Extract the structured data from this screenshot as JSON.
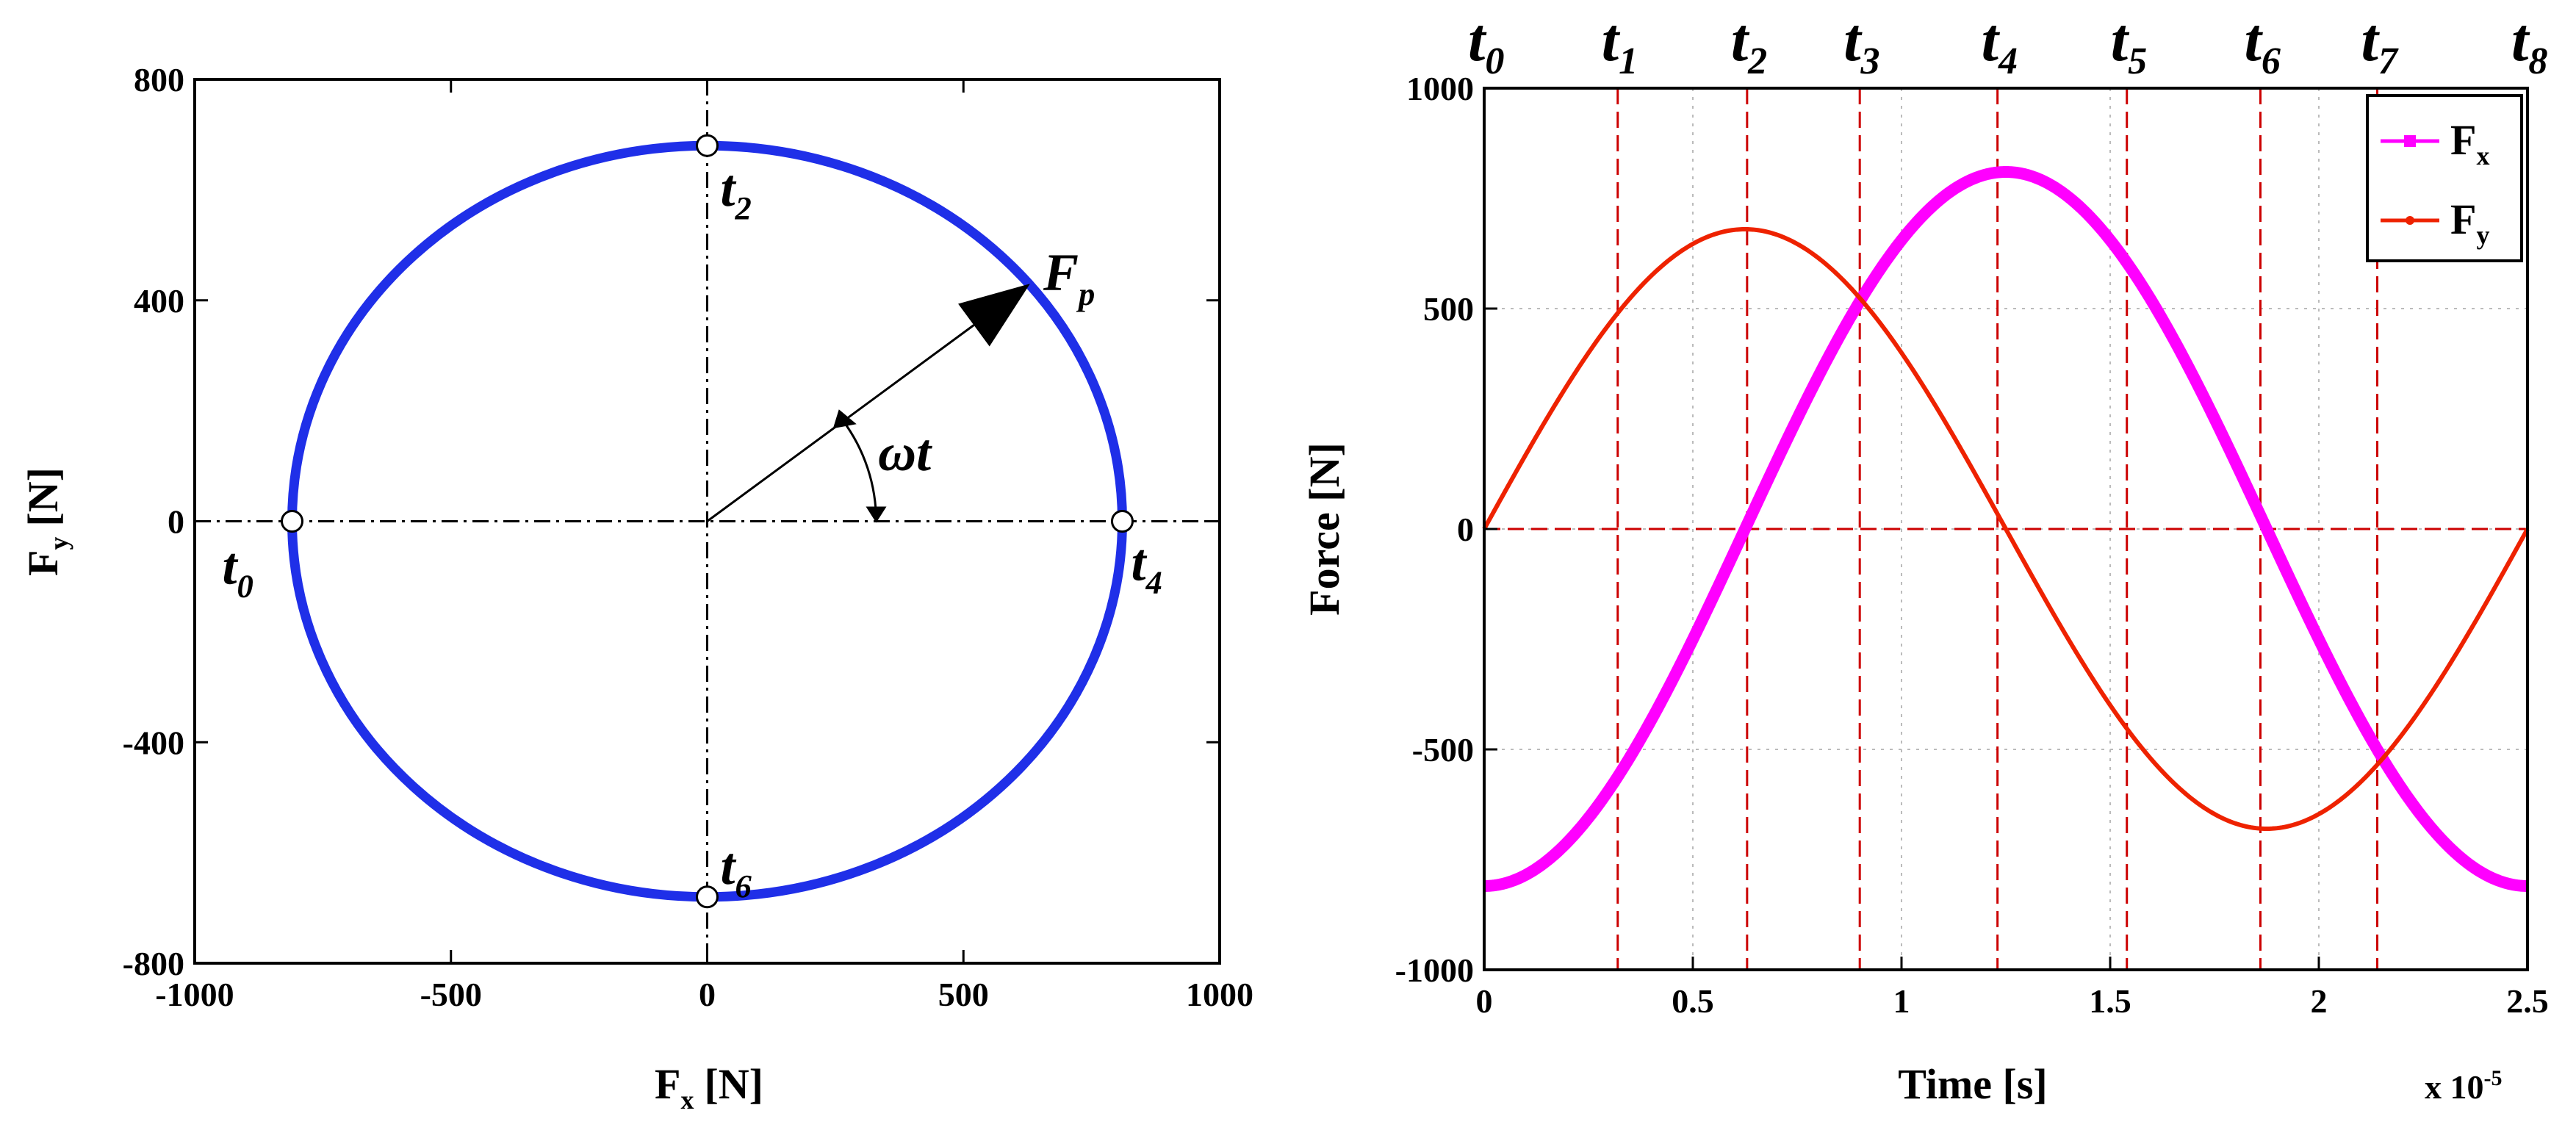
{
  "colors": {
    "ellipse": "#1f2fe8",
    "fx": "#ff00ff",
    "fy": "#ee2200",
    "time_grid": "#cc0000",
    "axis": "#000000"
  },
  "chart_data": [
    {
      "type": "line",
      "panel": "left",
      "description_title": "",
      "xlabel": "F",
      "xlabel_sub": "x",
      "xlabel_unit": "[N]",
      "ylabel": "F",
      "ylabel_sub": "y",
      "ylabel_unit": "[N]",
      "xlim": [
        -1000,
        1000
      ],
      "ylim": [
        -800,
        800
      ],
      "xticks": [
        -1000,
        -500,
        0,
        500,
        1000
      ],
      "xtick_labels": [
        "-1000",
        "-500",
        "0",
        "500",
        "1000"
      ],
      "yticks": [
        -800,
        -400,
        0,
        400,
        800
      ],
      "ytick_labels": [
        "-800",
        "-400",
        "0",
        "400",
        "800"
      ],
      "series": [
        {
          "name": "ellipse",
          "semi_axis_x": 810,
          "semi_axis_y": 680
        }
      ],
      "markers": [
        {
          "label": "t",
          "sub": "0",
          "x": -810,
          "y": 0
        },
        {
          "label": "t",
          "sub": "2",
          "x": 0,
          "y": 680
        },
        {
          "label": "t",
          "sub": "4",
          "x": 810,
          "y": 0
        },
        {
          "label": "t",
          "sub": "6",
          "x": 0,
          "y": -680
        }
      ],
      "annotations": {
        "force_label": "F",
        "force_sub": "p",
        "force_tip": [
          630,
          430
        ],
        "angle_label": "ωt"
      }
    },
    {
      "type": "line",
      "panel": "right",
      "xlabel": "Time [s]",
      "ylabel": "Force [N]",
      "x_scale_note": "x 10",
      "x_scale_exp": "-5",
      "xlim": [
        0,
        2.5
      ],
      "ylim": [
        -1000,
        1000
      ],
      "xticks": [
        0,
        0.5,
        1,
        1.5,
        2,
        2.5
      ],
      "xtick_labels": [
        "0",
        "0.5",
        "1",
        "1.5",
        "2",
        "2.5"
      ],
      "yticks": [
        -1000,
        -500,
        0,
        500,
        1000
      ],
      "ytick_labels": [
        "-1000",
        "-500",
        "0",
        "500",
        "1000"
      ],
      "period": 2.5,
      "series": [
        {
          "name": "F",
          "sub": "x",
          "amplitude": 810,
          "formula": "-A*cos(2*pi*t/T)",
          "marker": "square"
        },
        {
          "name": "F",
          "sub": "y",
          "amplitude": 680,
          "formula": "A*sin(2*pi*t/T)",
          "marker": "dot"
        }
      ],
      "time_marks": [
        {
          "label": "t",
          "sub": "0",
          "x": 0
        },
        {
          "label": "t",
          "sub": "1",
          "x": 0.32
        },
        {
          "label": "t",
          "sub": "2",
          "x": 0.63
        },
        {
          "label": "t",
          "sub": "3",
          "x": 0.9
        },
        {
          "label": "t",
          "sub": "4",
          "x": 1.23
        },
        {
          "label": "t",
          "sub": "5",
          "x": 1.54
        },
        {
          "label": "t",
          "sub": "6",
          "x": 1.86
        },
        {
          "label": "t",
          "sub": "7",
          "x": 2.14
        },
        {
          "label": "t",
          "sub": "8",
          "x": 2.5
        }
      ],
      "legend_position": "top-right"
    }
  ]
}
